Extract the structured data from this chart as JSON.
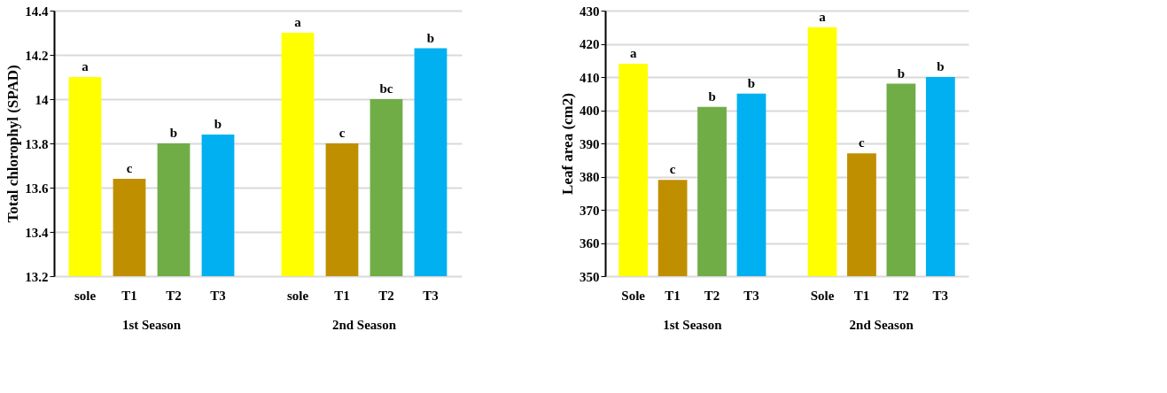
{
  "chart_data": [
    {
      "type": "bar",
      "ylabel": "Total chlorophyl (SPAD)",
      "categories": [
        "sole",
        "T1",
        "T2",
        "T3",
        "sole",
        "T1",
        "T2",
        "T3"
      ],
      "values": [
        14.1,
        13.64,
        13.8,
        13.84,
        14.3,
        13.8,
        14.0,
        14.23
      ],
      "colors": [
        "#ffff00",
        "#bf8f00",
        "#70ad47",
        "#00b0f0",
        "#ffff00",
        "#bf8f00",
        "#70ad47",
        "#00b0f0"
      ],
      "value_labels": [
        "a",
        "c",
        "b",
        "b",
        "a",
        "c",
        "bc",
        "b"
      ],
      "annotations": [
        "1st Season",
        "2nd Season"
      ],
      "ylim": [
        13.2,
        14.4
      ],
      "yticks": [
        13.2,
        13.4,
        13.6,
        13.8,
        14,
        14.2,
        14.4
      ],
      "grid": "y"
    },
    {
      "type": "bar",
      "ylabel": "Leaf area (cm2)",
      "categories": [
        "Sole",
        "T1",
        "T2",
        "T3",
        "Sole",
        "T1",
        "T2",
        "T3"
      ],
      "values": [
        414,
        379,
        401,
        405,
        425,
        387,
        408,
        410
      ],
      "colors": [
        "#ffff00",
        "#bf8f00",
        "#70ad47",
        "#00b0f0",
        "#ffff00",
        "#bf8f00",
        "#70ad47",
        "#00b0f0"
      ],
      "value_labels": [
        "a",
        "c",
        "b",
        "b",
        "a",
        "c",
        "b",
        "b"
      ],
      "annotations": [
        "1st Season",
        "2nd Season"
      ],
      "ylim": [
        350,
        430
      ],
      "yticks": [
        350,
        360,
        370,
        380,
        390,
        400,
        410,
        420,
        430
      ],
      "grid": "y"
    }
  ]
}
